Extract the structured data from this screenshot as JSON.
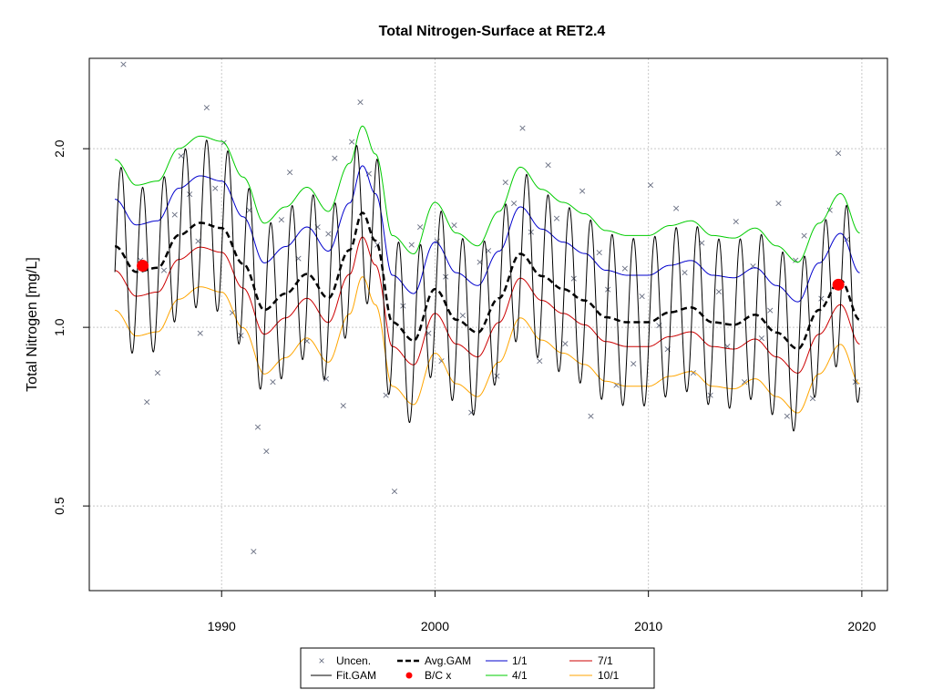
{
  "chart_data": {
    "type": "line",
    "title": "Total Nitrogen-Surface at RET2.4",
    "xlabel": "",
    "ylabel": "Total Nitrogen [mg/L]",
    "y_scale": "log",
    "xlim": [
      1983.8,
      2021.2
    ],
    "ylim": [
      0.36,
      2.84
    ],
    "x_ticks": [
      "1990",
      "2000",
      "2010",
      "2020"
    ],
    "y_ticks": [
      "0.5",
      "1.0",
      "2.0"
    ],
    "grid": true,
    "legend_position": "bottom",
    "colors": {
      "uncen": "#6a7083",
      "fit_gam": "#000000",
      "avg_gam": "#000000",
      "bc_x": "#ff0000",
      "p1_1": "#0000cd",
      "p4_1": "#00cc00",
      "p7_1": "#cc0000",
      "p10_1": "#ffa500"
    },
    "avg_gam": {
      "name": "Avg.GAM",
      "x": [
        1985.0,
        1986.0,
        1987.0,
        1988.0,
        1989.0,
        1990.0,
        1991.0,
        1992.0,
        1993.0,
        1994.0,
        1995.0,
        1996.0,
        1996.6,
        1997.2,
        1998.0,
        1999.0,
        2000.0,
        2001.0,
        2002.0,
        2003.0,
        2004.0,
        2005.0,
        2006.0,
        2007.0,
        2008.0,
        2009.0,
        2010.0,
        2011.0,
        2012.0,
        2013.0,
        2014.0,
        2015.0,
        2016.0,
        2017.0,
        2018.0,
        2019.0,
        2019.9
      ],
      "y": [
        1.37,
        1.24,
        1.26,
        1.43,
        1.5,
        1.47,
        1.28,
        1.07,
        1.14,
        1.23,
        1.12,
        1.35,
        1.56,
        1.4,
        1.02,
        0.95,
        1.16,
        1.03,
        0.98,
        1.12,
        1.33,
        1.22,
        1.16,
        1.11,
        1.04,
        1.02,
        1.02,
        1.06,
        1.08,
        1.02,
        1.01,
        1.05,
        0.98,
        0.92,
        1.07,
        1.2,
        1.03
      ]
    },
    "ratio_1_1": {
      "name": "1/1",
      "factor": 1.2
    },
    "ratio_4_1": {
      "name": "4/1",
      "factor": 1.4
    },
    "ratio_7_1": {
      "name": "7/1",
      "factor": 0.91
    },
    "ratio_10_1": {
      "name": "10/1",
      "factor": 0.78
    },
    "fit_gam": {
      "name": "Fit.GAM",
      "amplitude": 0.65,
      "cycles_per_year": 1,
      "phase_year": 1986.3
    },
    "bc_x": {
      "name": "B/C x",
      "points": [
        {
          "x": 1986.3,
          "y": 1.27
        },
        {
          "x": 2018.9,
          "y": 1.18
        }
      ]
    },
    "uncen": {
      "name": "Uncen.",
      "points": [
        [
          1985.4,
          2.78
        ],
        [
          1986.2,
          1.3
        ],
        [
          1986.5,
          0.75
        ],
        [
          1987.0,
          0.84
        ],
        [
          1987.3,
          1.25
        ],
        [
          1987.8,
          1.55
        ],
        [
          1988.1,
          1.95
        ],
        [
          1988.5,
          1.68
        ],
        [
          1988.9,
          1.4
        ],
        [
          1989.3,
          2.35
        ],
        [
          1989.7,
          1.72
        ],
        [
          1990.1,
          2.05
        ],
        [
          1990.5,
          1.06
        ],
        [
          1990.9,
          0.97
        ],
        [
          1991.3,
          1.58
        ],
        [
          1991.7,
          0.68
        ],
        [
          1992.1,
          0.62
        ],
        [
          1992.4,
          0.81
        ],
        [
          1992.8,
          1.52
        ],
        [
          1993.2,
          1.83
        ],
        [
          1993.6,
          1.31
        ],
        [
          1994.0,
          0.95
        ],
        [
          1994.5,
          1.48
        ],
        [
          1994.9,
          0.82
        ],
        [
          1995.3,
          1.93
        ],
        [
          1995.7,
          0.74
        ],
        [
          1996.1,
          2.06
        ],
        [
          1996.5,
          2.4
        ],
        [
          1996.9,
          1.82
        ],
        [
          1997.3,
          1.38
        ],
        [
          1997.7,
          0.77
        ],
        [
          1998.1,
          0.53
        ],
        [
          1998.5,
          1.09
        ],
        [
          1998.9,
          1.38
        ],
        [
          1999.3,
          1.48
        ],
        [
          1999.7,
          0.98
        ],
        [
          2000.1,
          1.4
        ],
        [
          2000.5,
          1.22
        ],
        [
          2000.9,
          1.49
        ],
        [
          2001.3,
          1.05
        ],
        [
          2001.7,
          0.72
        ],
        [
          2002.1,
          1.29
        ],
        [
          2002.5,
          1.35
        ],
        [
          2002.9,
          0.83
        ],
        [
          2003.3,
          1.76
        ],
        [
          2003.7,
          1.62
        ],
        [
          2004.1,
          2.17
        ],
        [
          2004.5,
          1.45
        ],
        [
          2004.9,
          0.88
        ],
        [
          2005.3,
          1.88
        ],
        [
          2005.7,
          1.53
        ],
        [
          2006.1,
          0.94
        ],
        [
          2006.5,
          1.21
        ],
        [
          2006.9,
          1.7
        ],
        [
          2007.3,
          0.71
        ],
        [
          2007.7,
          1.34
        ],
        [
          2008.1,
          1.16
        ],
        [
          2008.5,
          0.8
        ],
        [
          2008.9,
          1.26
        ],
        [
          2009.3,
          0.87
        ],
        [
          2009.7,
          1.13
        ],
        [
          2010.1,
          1.74
        ],
        [
          2010.5,
          1.01
        ],
        [
          2010.9,
          0.92
        ],
        [
          2011.3,
          1.59
        ],
        [
          2011.7,
          1.24
        ],
        [
          2012.1,
          0.84
        ],
        [
          2012.5,
          1.39
        ],
        [
          2012.9,
          0.77
        ],
        [
          2013.3,
          1.15
        ],
        [
          2013.7,
          0.93
        ],
        [
          2014.1,
          1.51
        ],
        [
          2014.5,
          0.81
        ],
        [
          2014.9,
          1.27
        ],
        [
          2015.3,
          0.96
        ],
        [
          2015.7,
          1.07
        ],
        [
          2016.1,
          1.62
        ],
        [
          2016.5,
          0.71
        ],
        [
          2016.9,
          1.3
        ],
        [
          2017.3,
          1.43
        ],
        [
          2017.7,
          0.76
        ],
        [
          2018.1,
          1.12
        ],
        [
          2018.5,
          1.58
        ],
        [
          2018.9,
          1.97
        ],
        [
          2019.3,
          1.41
        ],
        [
          2019.7,
          0.81
        ],
        [
          1991.5,
          0.42
        ],
        [
          1989.0,
          0.98
        ],
        [
          1995.0,
          1.44
        ],
        [
          2000.3,
          0.88
        ]
      ]
    },
    "legend": {
      "uncen": "Uncen.",
      "fit_gam": "Fit.GAM",
      "avg_gam": "Avg.GAM",
      "bc_x": "B/C x",
      "r1": "1/1",
      "r4": "4/1",
      "r7": "7/1",
      "r10": "10/1"
    }
  }
}
